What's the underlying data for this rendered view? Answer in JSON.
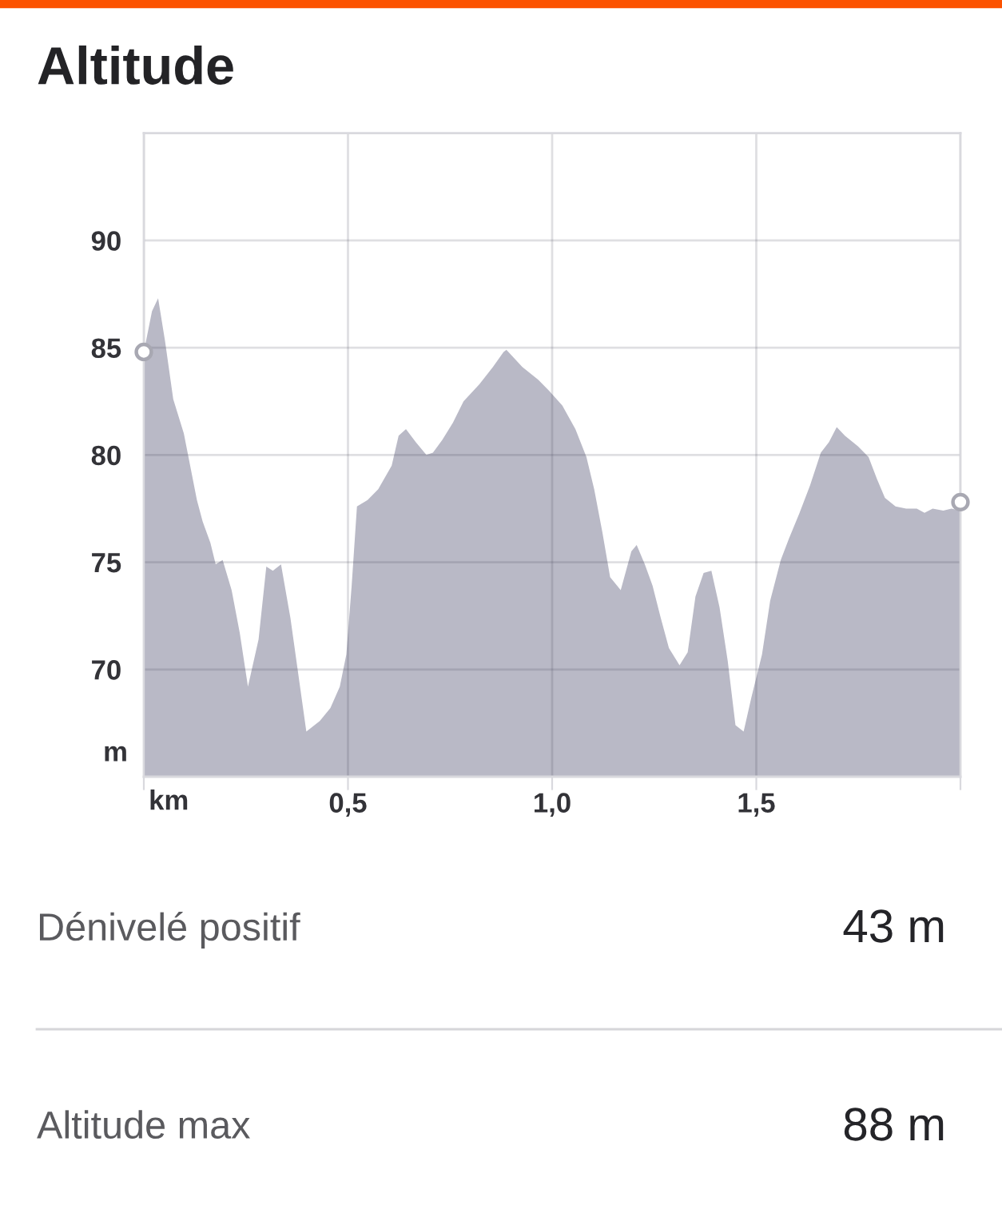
{
  "chart_data": {
    "type": "area",
    "title": "Altitude",
    "xlabel": "km",
    "ylabel": "m",
    "x": [
      0,
      0.02,
      0.035,
      0.052,
      0.072,
      0.098,
      0.13,
      0.144,
      0.163,
      0.176,
      0.193,
      0.215,
      0.235,
      0.255,
      0.281,
      0.3,
      0.316,
      0.336,
      0.359,
      0.398,
      0.431,
      0.457,
      0.48,
      0.496,
      0.509,
      0.522,
      0.548,
      0.574,
      0.607,
      0.624,
      0.642,
      0.666,
      0.692,
      0.708,
      0.731,
      0.757,
      0.783,
      0.822,
      0.855,
      0.881,
      0.888,
      0.927,
      0.966,
      0.992,
      1.025,
      1.057,
      1.084,
      1.103,
      1.123,
      1.142,
      1.168,
      1.194,
      1.207,
      1.227,
      1.246,
      1.266,
      1.286,
      1.312,
      1.332,
      1.351,
      1.371,
      1.39,
      1.41,
      1.43,
      1.449,
      1.469,
      1.488,
      1.514,
      1.534,
      1.56,
      1.58,
      1.606,
      1.632,
      1.658,
      1.678,
      1.697,
      1.717,
      1.749,
      1.775,
      1.795,
      1.815,
      1.841,
      1.867,
      1.893,
      1.912,
      1.932,
      1.958,
      1.978,
      2.0
    ],
    "series": [
      {
        "color": "#b9b9c6",
        "values": [
          84.8,
          86.7,
          87.3,
          85.3,
          82.6,
          81.0,
          77.9,
          76.9,
          75.9,
          74.9,
          75.1,
          73.7,
          71.7,
          69.2,
          71.4,
          74.8,
          74.6,
          74.9,
          72.4,
          67.1,
          67.6,
          68.2,
          69.2,
          70.7,
          73.9,
          77.6,
          77.9,
          78.4,
          79.5,
          80.9,
          81.2,
          80.6,
          80.0,
          80.1,
          80.7,
          81.5,
          82.5,
          83.3,
          84.1,
          84.8,
          84.9,
          84.1,
          83.5,
          83.0,
          82.3,
          81.2,
          79.9,
          78.4,
          76.4,
          74.3,
          73.7,
          75.5,
          75.8,
          74.9,
          73.9,
          72.4,
          71.0,
          70.2,
          70.8,
          73.4,
          74.5,
          74.6,
          72.9,
          70.4,
          67.4,
          67.1,
          68.7,
          70.7,
          73.2,
          75.1,
          76.1,
          77.3,
          78.6,
          80.1,
          80.6,
          81.3,
          80.9,
          80.4,
          79.9,
          78.9,
          78.0,
          77.6,
          77.5,
          77.5,
          77.3,
          77.5,
          77.4,
          77.5,
          77.4
        ]
      },
      {
        "type": "scatter",
        "marker": "circle",
        "color": "#a8a8b2",
        "x": [
          0,
          2.0
        ],
        "values": [
          84.8,
          77.8
        ]
      }
    ],
    "xlim": [
      0,
      2.0
    ],
    "xticks": [
      {
        "value": 0,
        "label": null
      },
      {
        "value": 0.5,
        "label": "0,5"
      },
      {
        "value": 1.0,
        "label": "1,0"
      },
      {
        "value": 1.5,
        "label": "1,5"
      },
      {
        "value": 2.0,
        "label": null
      }
    ],
    "ylim": [
      65,
      95
    ],
    "yticks": [
      70,
      75,
      80,
      85,
      90
    ],
    "grid": true,
    "annotations": [
      "Dénivelé positif",
      "43 m",
      "Altitude max",
      "88 m"
    ]
  }
}
